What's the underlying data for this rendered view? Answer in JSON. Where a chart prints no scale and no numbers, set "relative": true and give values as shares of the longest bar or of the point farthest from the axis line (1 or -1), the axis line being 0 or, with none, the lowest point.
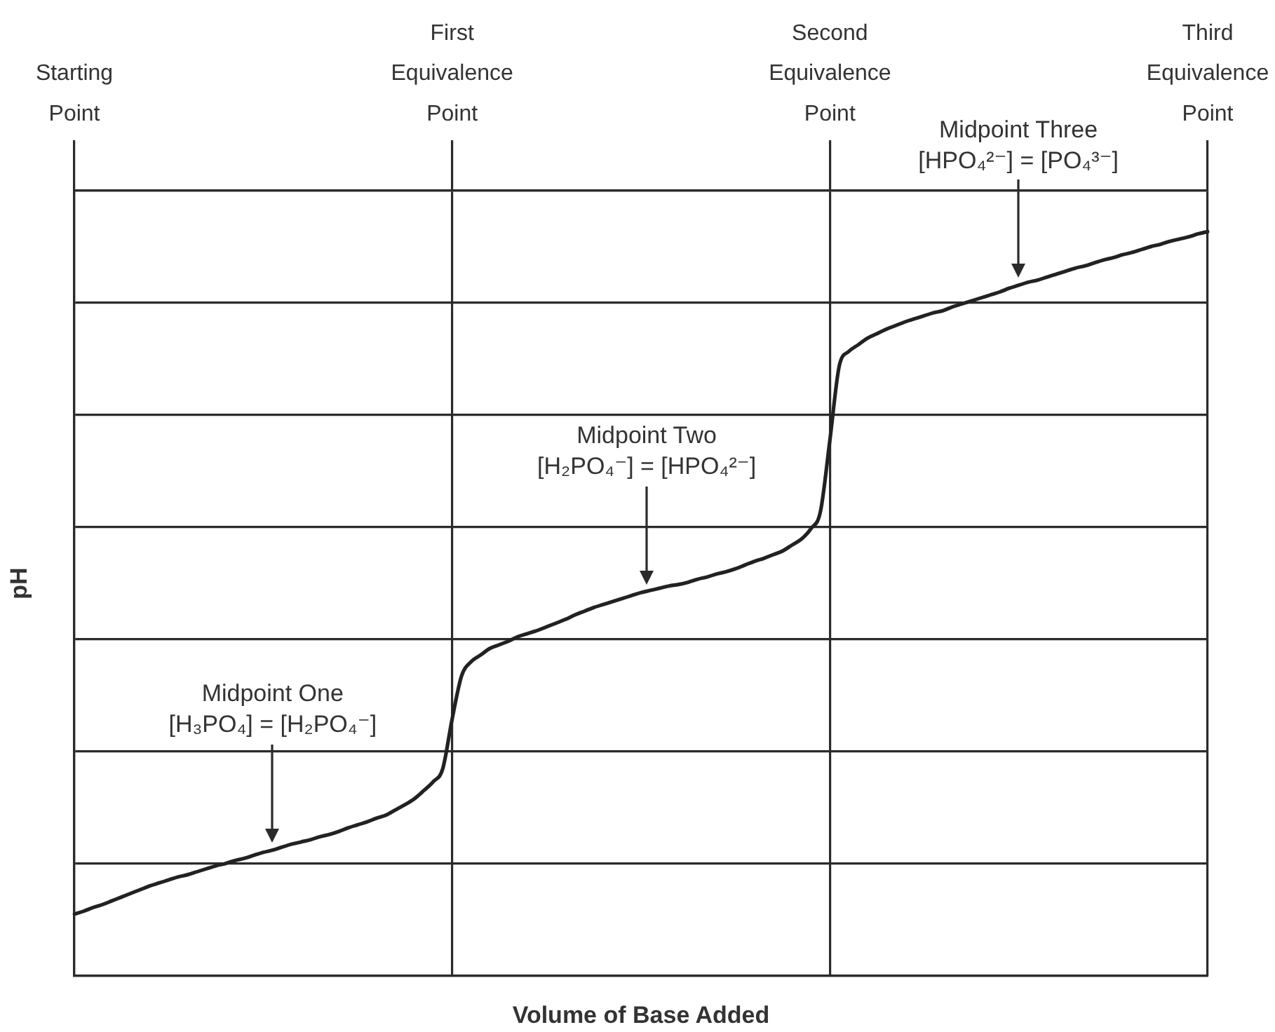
{
  "chart_data": {
    "type": "line",
    "xlabel": "Volume of Base Added",
    "ylabel": "pH",
    "relative": true,
    "categories": [
      "Starting Point",
      null,
      null,
      null,
      null,
      null,
      null,
      null,
      null,
      null,
      null,
      null,
      null,
      null,
      null,
      null,
      null,
      null,
      null,
      null,
      null,
      null,
      null,
      null,
      null,
      null,
      null,
      null,
      null,
      null,
      null,
      null,
      null,
      null,
      null,
      null,
      null,
      null,
      null,
      null,
      "First Equivalence Point",
      null,
      null,
      null,
      null,
      null,
      null,
      null,
      null,
      null,
      null,
      null,
      null,
      null,
      null,
      null,
      null,
      null,
      null,
      null,
      null,
      null,
      null,
      null,
      null,
      null,
      null,
      null,
      null,
      null,
      null,
      null,
      null,
      null,
      null,
      null,
      null,
      null,
      null,
      null,
      "Second Equivalence Point",
      null,
      null,
      null,
      null,
      null,
      null,
      null,
      null,
      null,
      null,
      null,
      null,
      null,
      null,
      null,
      null,
      null,
      null,
      null,
      null,
      null,
      null,
      null,
      null,
      null,
      null,
      null,
      null,
      null,
      null,
      null,
      null,
      null,
      null,
      null,
      null,
      null,
      null,
      null,
      "Third Equivalence Point"
    ],
    "values": [
      0.083,
      0.087,
      0.092,
      0.096,
      0.101,
      0.106,
      0.111,
      0.116,
      0.121,
      0.125,
      0.129,
      0.133,
      0.136,
      0.14,
      0.144,
      0.148,
      0.151,
      0.155,
      0.158,
      0.162,
      0.166,
      0.169,
      0.173,
      0.177,
      0.18,
      0.183,
      0.187,
      0.19,
      0.194,
      0.199,
      0.203,
      0.207,
      0.212,
      0.216,
      0.223,
      0.23,
      0.238,
      0.249,
      0.261,
      0.278,
      0.345,
      0.403,
      0.422,
      0.431,
      0.44,
      0.445,
      0.45,
      0.456,
      0.46,
      0.464,
      0.469,
      0.474,
      0.479,
      0.485,
      0.49,
      0.495,
      0.499,
      0.503,
      0.507,
      0.511,
      0.515,
      0.518,
      0.521,
      0.524,
      0.526,
      0.529,
      0.533,
      0.536,
      0.54,
      0.543,
      0.547,
      0.552,
      0.557,
      0.561,
      0.566,
      0.571,
      0.579,
      0.587,
      0.601,
      0.624,
      0.72,
      0.82,
      0.839,
      0.848,
      0.857,
      0.863,
      0.869,
      0.874,
      0.879,
      0.883,
      0.887,
      0.891,
      0.894,
      0.899,
      0.903,
      0.907,
      0.911,
      0.915,
      0.919,
      0.924,
      0.928,
      0.932,
      0.935,
      0.939,
      0.943,
      0.947,
      0.951,
      0.954,
      0.958,
      0.962,
      0.965,
      0.969,
      0.972,
      0.976,
      0.98,
      0.983,
      0.987,
      0.99,
      0.993,
      0.997,
      1
    ],
    "color": "#222222",
    "annotations": [
      "Midpoint One\n[H₃PO₄] = [H₂PO₄⁻]",
      "Midpoint Two\n[H₂PO₄⁻] = [HPO₄²⁻]",
      "Midpoint Three\n[HPO₄²⁻] = [PO₄³⁻]"
    ],
    "grid": true,
    "legend": false,
    "marker": "none",
    "line_style": "solid"
  }
}
